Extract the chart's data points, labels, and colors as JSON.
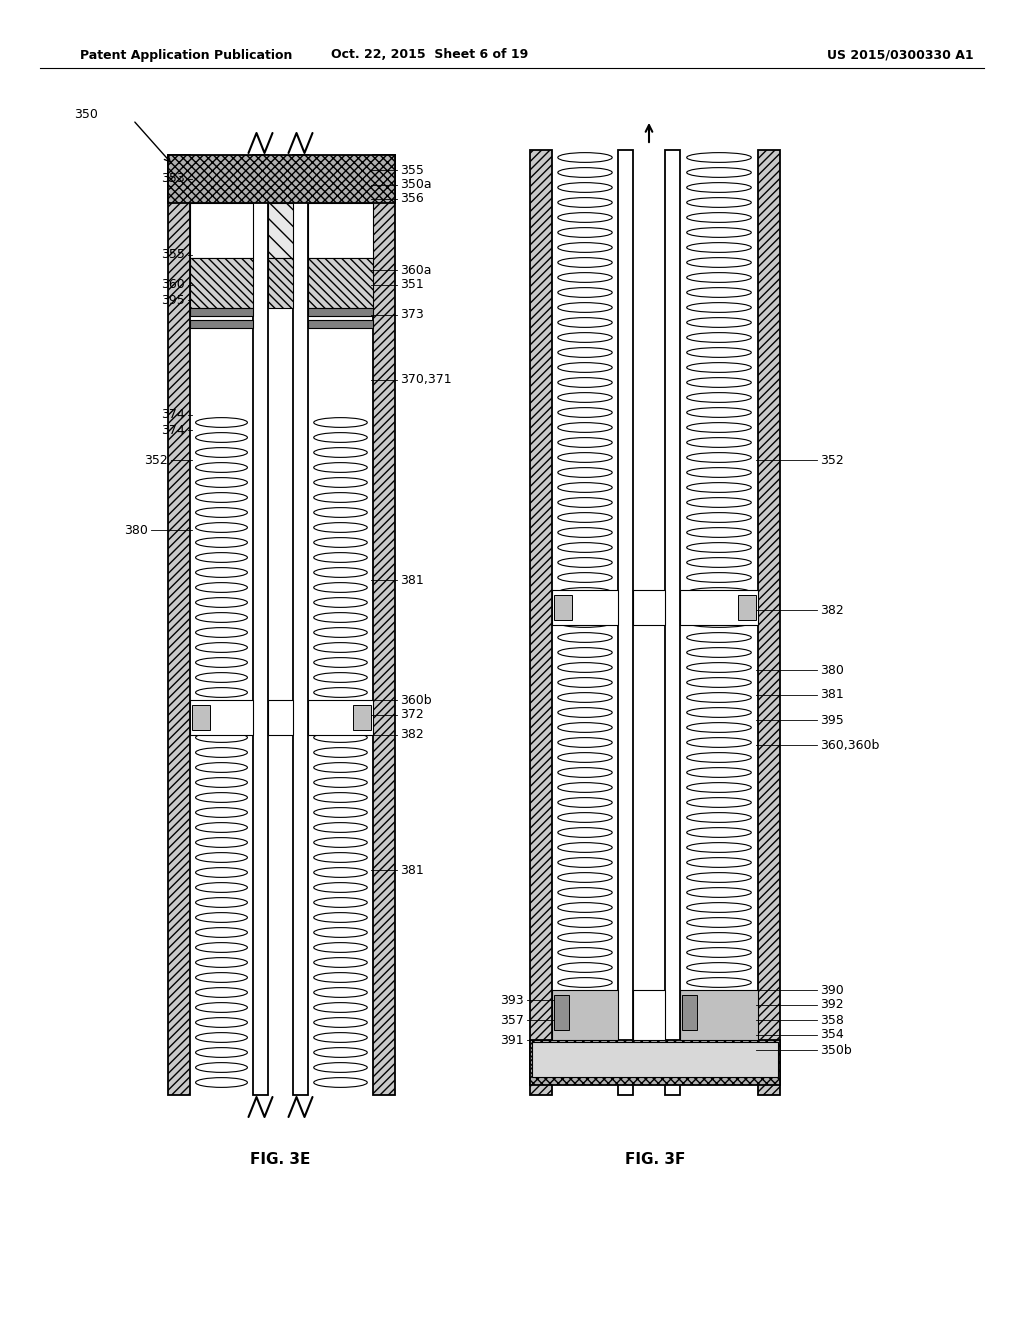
{
  "title_left": "Patent Application Publication",
  "title_center": "Oct. 22, 2015  Sheet 6 of 19",
  "title_right": "US 2015/0300330 A1",
  "fig_label_e": "FIG. 3E",
  "fig_label_f": "FIG. 3F",
  "bg_color": "#ffffff",
  "line_color": "#000000"
}
